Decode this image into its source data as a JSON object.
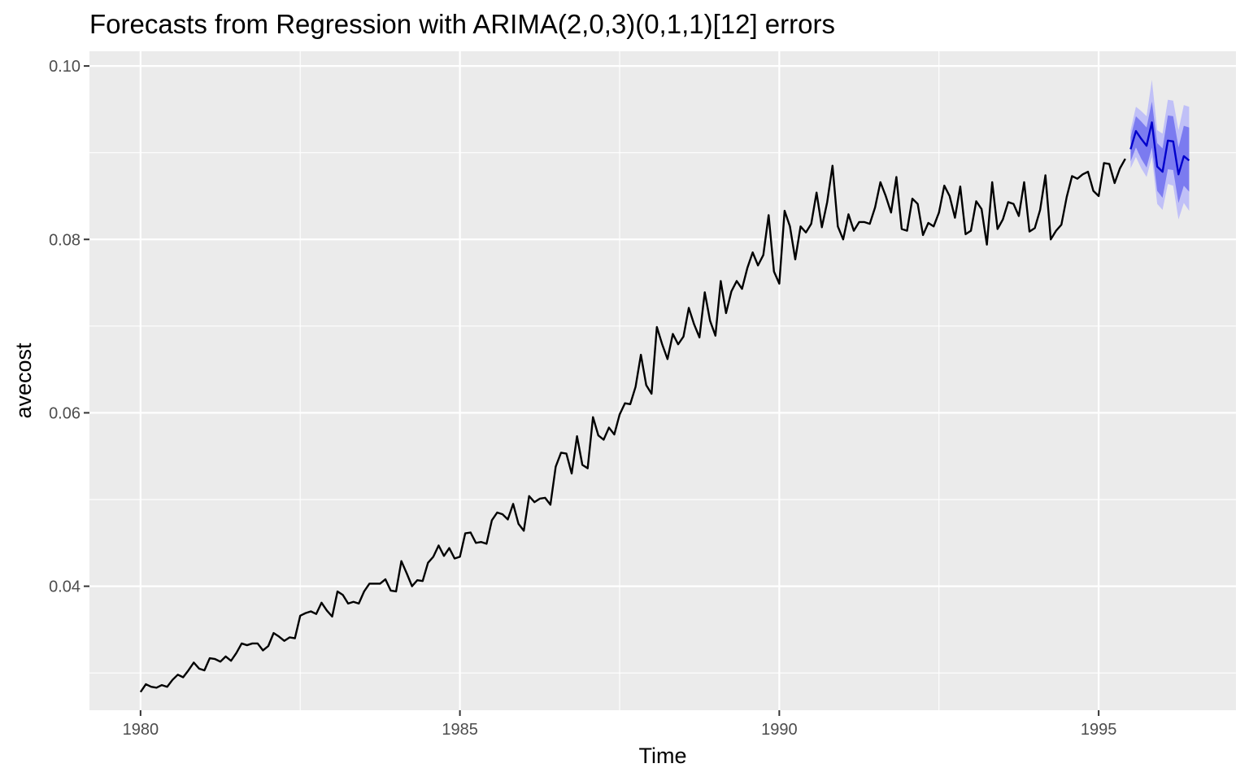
{
  "chart_data": {
    "type": "line",
    "title": "Forecasts from Regression with ARIMA(2,0,3)(0,1,1)[12] errors",
    "xlabel": "Time",
    "ylabel": "avecost",
    "xlim": [
      1979.2,
      1997.15
    ],
    "ylim": [
      0.0257,
      0.1017
    ],
    "x_ticks": [
      1980,
      1985,
      1990,
      1995
    ],
    "x_tick_labels": [
      "1980",
      "1985",
      "1990",
      "1995"
    ],
    "y_ticks": [
      0.04,
      0.06,
      0.08,
      0.1
    ],
    "y_tick_labels": [
      "0.04",
      "0.06",
      "0.08",
      "0.10"
    ],
    "grid": true,
    "colors": {
      "panel_bg": "#ebebeb",
      "grid": "#ffffff",
      "history_line": "#000000",
      "forecast_line": "#0000cc",
      "pi80": "#7b7bf0",
      "pi95": "#c0c0f7"
    },
    "series": [
      {
        "type": "history",
        "start": 1980.0,
        "frequency": 12,
        "values": [
          0.0278,
          0.0287,
          0.0284,
          0.0283,
          0.0286,
          0.0284,
          0.0292,
          0.0298,
          0.0295,
          0.0303,
          0.0312,
          0.0305,
          0.0303,
          0.0317,
          0.0316,
          0.0313,
          0.0319,
          0.0314,
          0.0323,
          0.0334,
          0.0332,
          0.0334,
          0.0334,
          0.0326,
          0.0331,
          0.0346,
          0.0342,
          0.0337,
          0.0341,
          0.034,
          0.0366,
          0.0369,
          0.0371,
          0.0368,
          0.0381,
          0.0372,
          0.0365,
          0.0394,
          0.039,
          0.038,
          0.0382,
          0.038,
          0.0394,
          0.0403,
          0.0403,
          0.0403,
          0.0408,
          0.0395,
          0.0394,
          0.0429,
          0.0415,
          0.04,
          0.0407,
          0.0406,
          0.0427,
          0.0434,
          0.0447,
          0.0435,
          0.0444,
          0.0432,
          0.0434,
          0.0461,
          0.0462,
          0.045,
          0.0451,
          0.0449,
          0.0476,
          0.0485,
          0.0483,
          0.0477,
          0.0495,
          0.0472,
          0.0464,
          0.0504,
          0.0497,
          0.0501,
          0.0502,
          0.0494,
          0.0538,
          0.0554,
          0.0553,
          0.053,
          0.0573,
          0.054,
          0.0536,
          0.0595,
          0.0574,
          0.0569,
          0.0583,
          0.0575,
          0.0598,
          0.0611,
          0.061,
          0.063,
          0.0667,
          0.0632,
          0.0622,
          0.0699,
          0.0679,
          0.0662,
          0.0691,
          0.0679,
          0.0688,
          0.0721,
          0.0702,
          0.0687,
          0.0739,
          0.0706,
          0.0689,
          0.0752,
          0.0715,
          0.074,
          0.0752,
          0.0743,
          0.0767,
          0.0785,
          0.077,
          0.0782,
          0.0828,
          0.0763,
          0.0749,
          0.0833,
          0.0815,
          0.0777,
          0.0815,
          0.0808,
          0.0818,
          0.0854,
          0.0814,
          0.0843,
          0.0885,
          0.0815,
          0.08,
          0.0829,
          0.081,
          0.082,
          0.082,
          0.0818,
          0.0837,
          0.0866,
          0.085,
          0.0831,
          0.0872,
          0.0812,
          0.081,
          0.0847,
          0.0841,
          0.0805,
          0.0819,
          0.0815,
          0.0831,
          0.0862,
          0.085,
          0.0825,
          0.0861,
          0.0806,
          0.081,
          0.0844,
          0.0835,
          0.0794,
          0.0866,
          0.0812,
          0.0823,
          0.0843,
          0.0841,
          0.0827,
          0.0866,
          0.0809,
          0.0813,
          0.0834,
          0.0874,
          0.08,
          0.081,
          0.0817,
          0.0849,
          0.0873,
          0.087,
          0.0875,
          0.0878,
          0.0856,
          0.085,
          0.0888,
          0.0887,
          0.0865,
          0.0882,
          0.0893
        ]
      },
      {
        "type": "forecast",
        "start": 1995.5,
        "frequency": 12,
        "values": [
          0.0904,
          0.0925,
          0.0916,
          0.0908,
          0.0935,
          0.0884,
          0.0878,
          0.0914,
          0.0913,
          0.0875,
          0.0896,
          0.0891
        ],
        "pi80_lower": [
          0.089,
          0.0906,
          0.0893,
          0.0883,
          0.0906,
          0.0856,
          0.0848,
          0.0881,
          0.088,
          0.0842,
          0.0862,
          0.0855
        ],
        "pi80_upper": [
          0.0918,
          0.0942,
          0.0936,
          0.0929,
          0.0959,
          0.0911,
          0.0905,
          0.0943,
          0.0942,
          0.0906,
          0.0931,
          0.0929
        ],
        "pi95_lower": [
          0.0882,
          0.0895,
          0.0882,
          0.0872,
          0.0895,
          0.0841,
          0.0834,
          0.0864,
          0.0862,
          0.0823,
          0.0842,
          0.0833
        ],
        "pi95_upper": [
          0.0926,
          0.0953,
          0.0948,
          0.0942,
          0.0984,
          0.0926,
          0.0922,
          0.0961,
          0.096,
          0.0926,
          0.0955,
          0.0953
        ]
      }
    ]
  }
}
